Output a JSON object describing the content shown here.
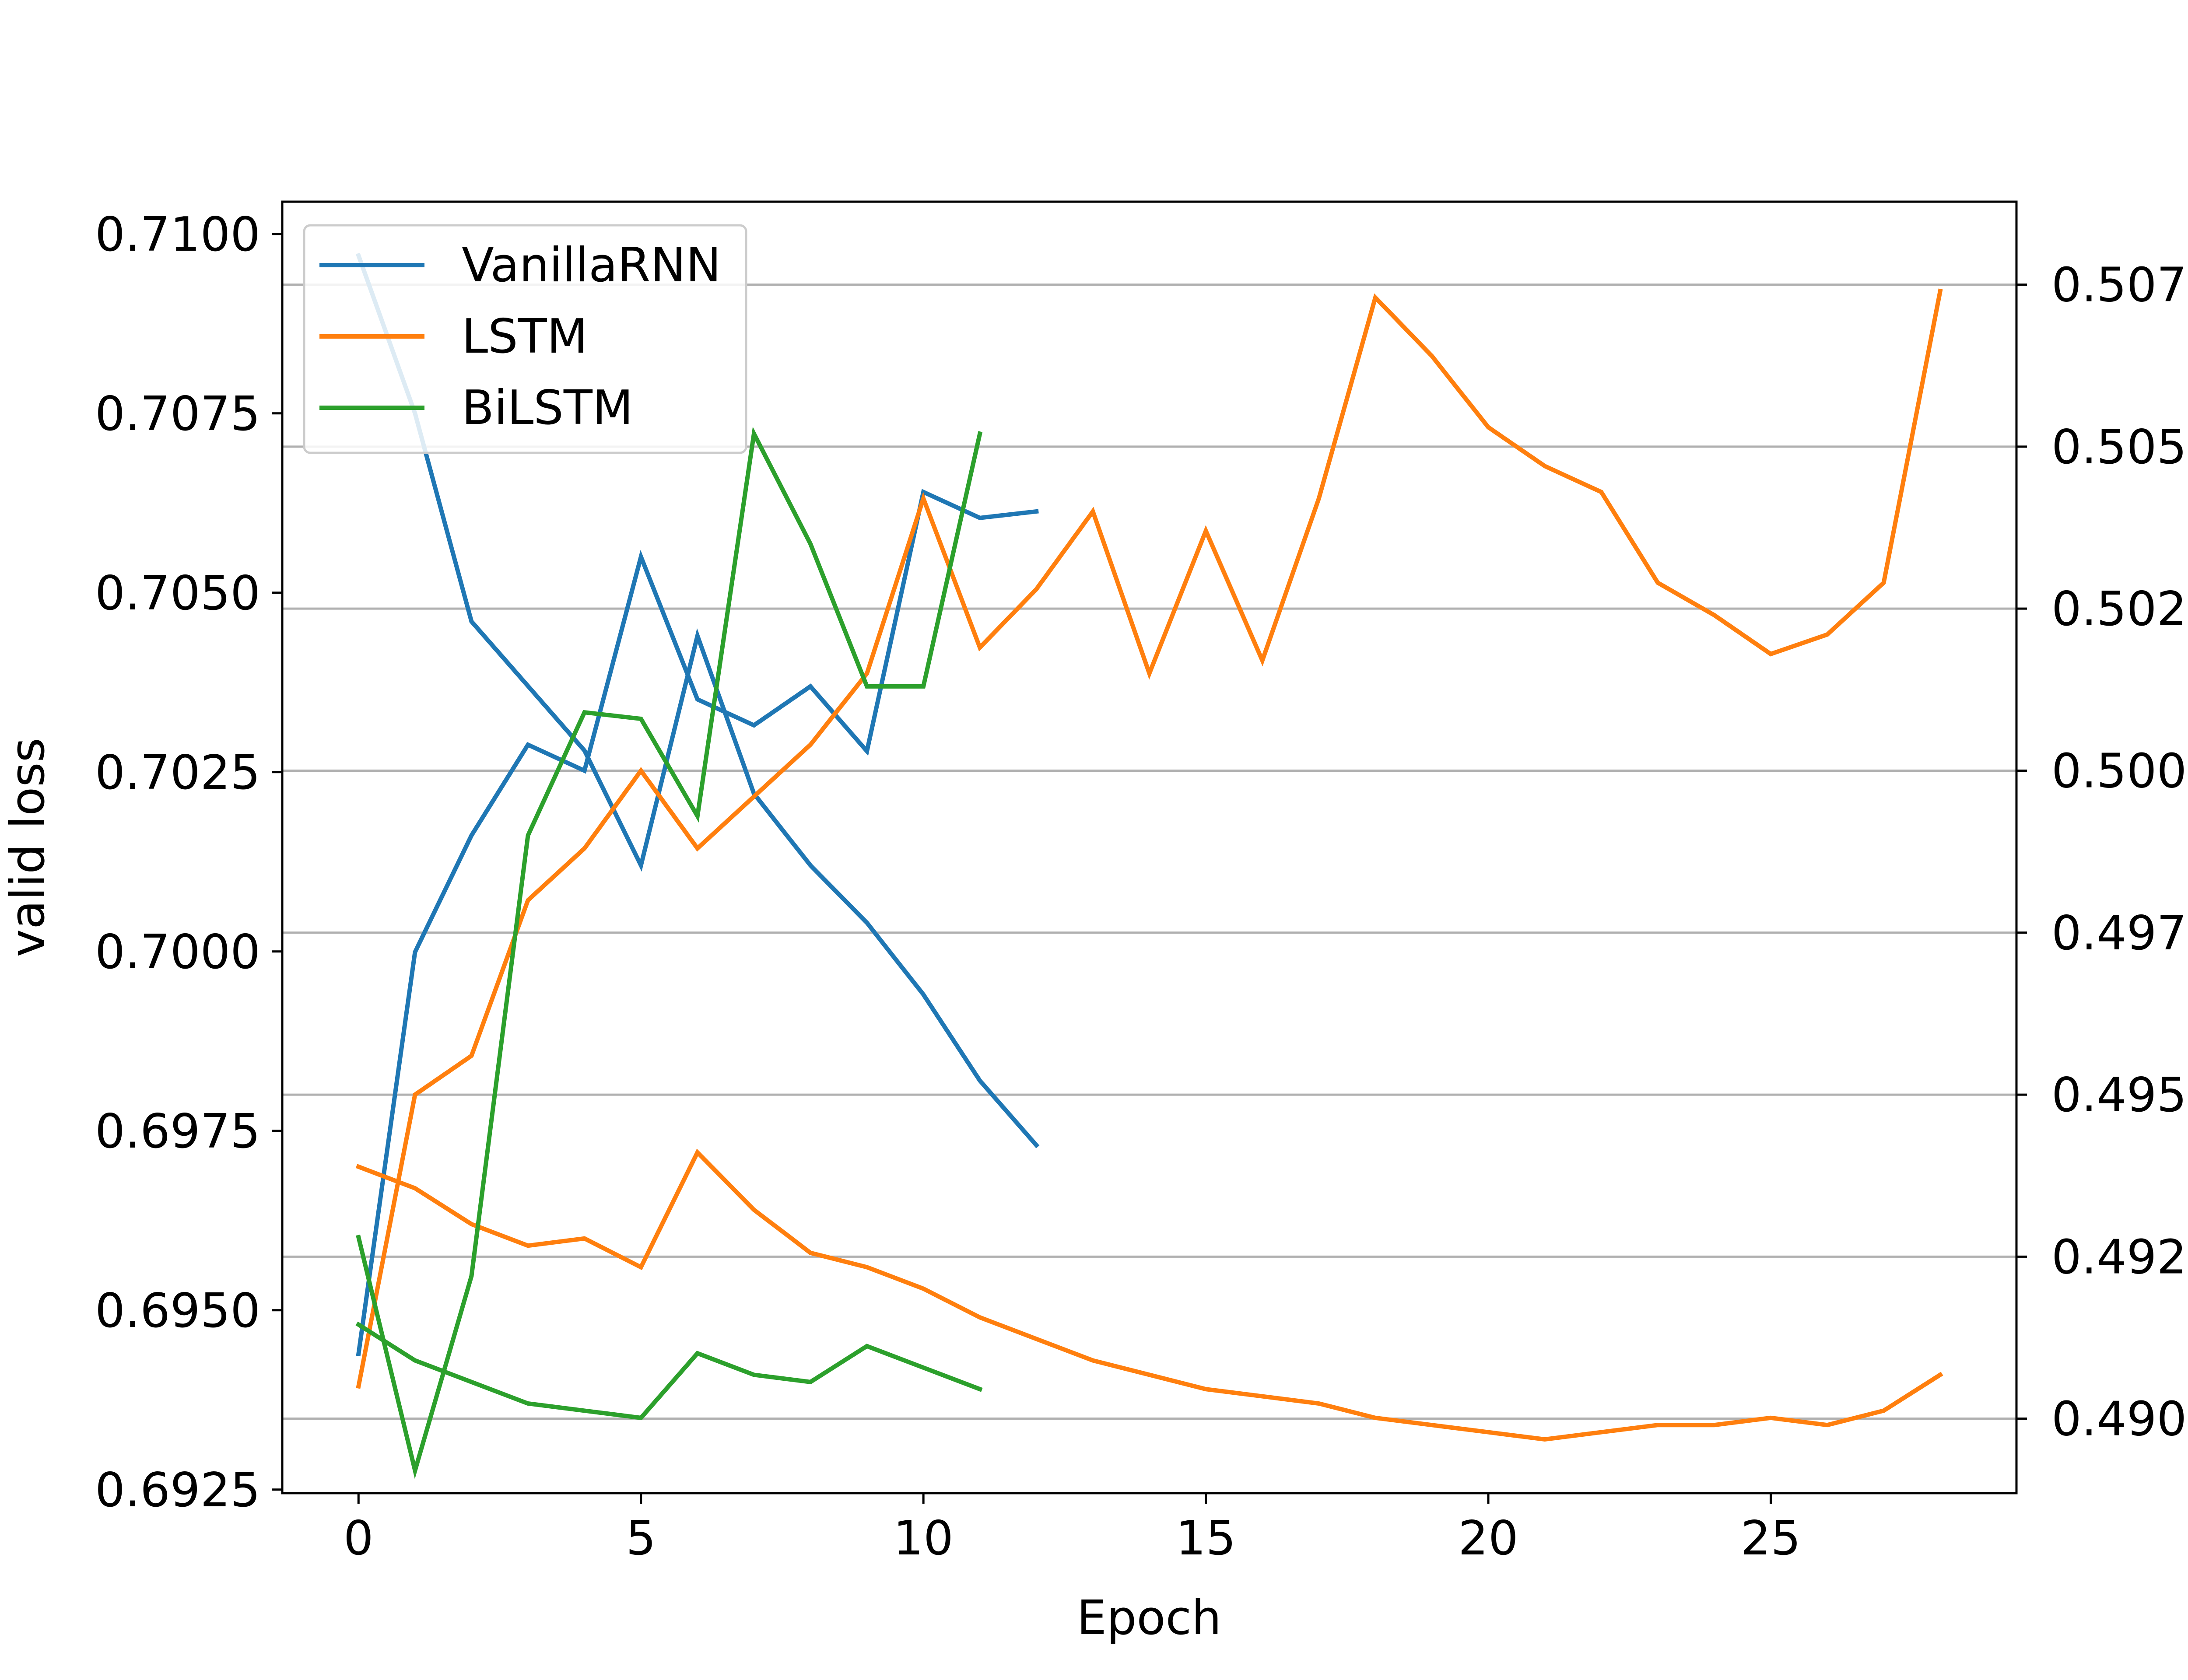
{
  "chart_data": {
    "type": "line",
    "xlabel": "Epoch",
    "ylabel_left": "valid loss",
    "xlim": [
      -1.35,
      29.35
    ],
    "ylim_left": [
      0.69245,
      0.71045
    ],
    "ylim_right": [
      0.48885,
      0.50878
    ],
    "xticks": [
      0,
      5,
      10,
      15,
      20,
      25
    ],
    "yticks_left": [
      "0.6925",
      "0.6950",
      "0.6975",
      "0.7000",
      "0.7025",
      "0.7050",
      "0.7075",
      "0.7100"
    ],
    "yticks_right": [
      "0.4900",
      "0.4925",
      "0.4950",
      "0.4975",
      "0.5000",
      "0.5025",
      "0.5050",
      "0.5075"
    ],
    "grid": "horizontal (right axis)",
    "legend_position": "top-left",
    "colors": {
      "VanillaRNN": "#1f77b4",
      "LSTM": "#ff7f0e",
      "BiLSTM": "#2ca02c"
    },
    "legend": [
      "VanillaRNN",
      "LSTM",
      "BiLSTM"
    ],
    "series": [
      {
        "name": "VanillaRNN",
        "axis": "left",
        "x": [
          0,
          1,
          2,
          3,
          4,
          5,
          6,
          7,
          8,
          9,
          10,
          11,
          12
        ],
        "y": [
          0.7097,
          0.7075,
          0.7046,
          0.7037,
          0.7028,
          0.7012,
          0.7044,
          0.7022,
          0.7012,
          0.7004,
          0.6994,
          0.6982,
          0.6973
        ]
      },
      {
        "name": "VanillaRNN",
        "axis": "right",
        "x": [
          0,
          1,
          2,
          3,
          4,
          5,
          6,
          7,
          8,
          9,
          10,
          11,
          12
        ],
        "y": [
          0.491,
          0.4972,
          0.499,
          0.5004,
          0.5,
          0.5033,
          0.5011,
          0.5007,
          0.5013,
          0.5003,
          0.5043,
          0.5039,
          0.504
        ]
      },
      {
        "name": "LSTM",
        "axis": "left",
        "x": [
          0,
          1,
          2,
          3,
          4,
          5,
          6,
          7,
          8,
          9,
          10,
          11,
          12,
          13,
          14,
          15,
          16,
          17,
          18,
          19,
          20,
          21,
          22,
          23,
          24,
          25,
          26,
          27,
          28
        ],
        "y": [
          0.697,
          0.6967,
          0.6962,
          0.6959,
          0.696,
          0.6956,
          0.6972,
          0.6964,
          0.6958,
          0.6956,
          0.6953,
          0.6949,
          0.6946,
          0.6943,
          0.6941,
          0.6939,
          0.6938,
          0.6937,
          0.6935,
          0.6934,
          0.6933,
          0.6932,
          0.6933,
          0.6934,
          0.6934,
          0.6935,
          0.6934,
          0.6936,
          0.6941
        ]
      },
      {
        "name": "LSTM",
        "axis": "right",
        "x": [
          0,
          1,
          2,
          3,
          4,
          5,
          6,
          7,
          8,
          9,
          10,
          11,
          12,
          13,
          14,
          15,
          16,
          17,
          18,
          19,
          20,
          21,
          22,
          23,
          24,
          25,
          26,
          27,
          28
        ],
        "y": [
          0.4905,
          0.495,
          0.4956,
          0.498,
          0.4988,
          0.5,
          0.4988,
          0.4996,
          0.5004,
          0.5015,
          0.5042,
          0.5019,
          0.5028,
          0.504,
          0.5015,
          0.5037,
          0.5017,
          0.5042,
          0.5073,
          0.5064,
          0.5053,
          0.5047,
          0.5043,
          0.5029,
          0.5024,
          0.5018,
          0.5021,
          0.5029,
          0.5074
        ]
      },
      {
        "name": "BiLSTM",
        "axis": "left",
        "x": [
          0,
          1,
          2,
          3,
          4,
          5,
          6,
          7,
          8,
          9,
          10,
          11
        ],
        "y": [
          0.6948,
          0.6943,
          0.694,
          0.6937,
          0.6936,
          0.6935,
          0.6944,
          0.6941,
          0.694,
          0.6945,
          0.6942,
          0.6939
        ]
      },
      {
        "name": "BiLSTM",
        "axis": "right",
        "x": [
          0,
          1,
          2,
          3,
          4,
          5,
          6,
          7,
          8,
          9,
          10,
          11
        ],
        "y": [
          0.4928,
          0.4892,
          0.4922,
          0.499,
          0.5009,
          0.5008,
          0.4993,
          0.5052,
          0.5035,
          0.5013,
          0.5013,
          0.5052
        ]
      }
    ]
  }
}
